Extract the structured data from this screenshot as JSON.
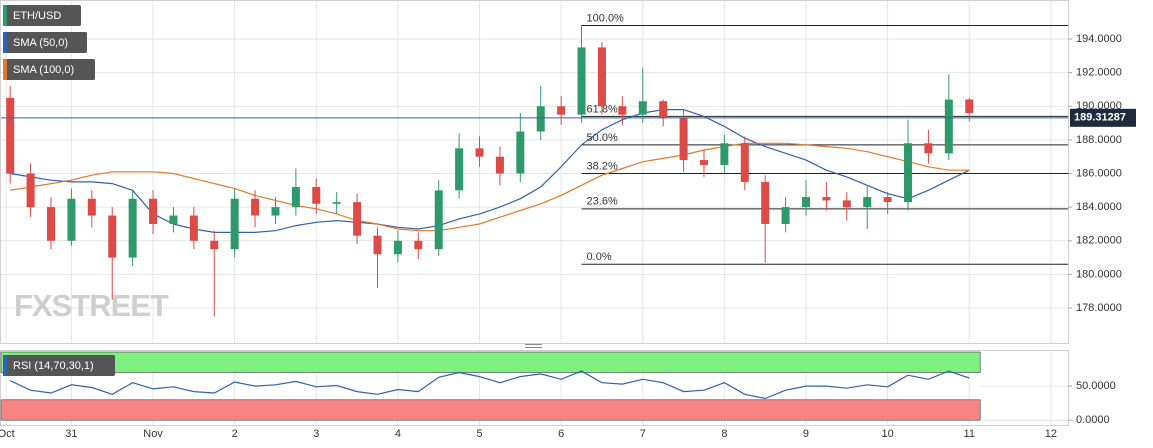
{
  "chart_data": [
    {
      "type": "candlestick",
      "name": "ETH/USD",
      "up_color": "#2e9a6b",
      "down_color": "#dd4b47",
      "x": [
        -0.75,
        -0.5,
        -0.25,
        0,
        0.25,
        0.5,
        0.75,
        1,
        1.25,
        1.5,
        1.75,
        2,
        2.25,
        2.5,
        2.75,
        3,
        3.25,
        3.5,
        3.75,
        4,
        4.25,
        4.5,
        4.75,
        5,
        5.25,
        5.5,
        5.75,
        6,
        6.25,
        6.5,
        6.75,
        7,
        7.25,
        7.5,
        7.75,
        8,
        8.25,
        8.5,
        8.75,
        9,
        9.25,
        9.5,
        9.75,
        10,
        10.25,
        10.5,
        10.75,
        11
      ],
      "open": [
        190.5,
        186,
        184,
        182,
        184.5,
        183.5,
        181,
        184.5,
        183,
        183.5,
        182,
        181.5,
        184.5,
        183.5,
        184,
        185.2,
        184.2,
        184.3,
        182.3,
        181.2,
        182,
        181.5,
        185,
        187.5,
        187,
        186,
        188.5,
        190,
        189.5,
        193.5,
        190,
        189.5,
        190.3,
        189.3,
        186.8,
        186.5,
        187.8,
        185.5,
        183,
        184,
        184.6,
        184.4,
        184,
        184.6,
        184.3,
        187.8,
        187.2,
        190.4
      ],
      "high": [
        191.2,
        186.6,
        184.6,
        185.1,
        185,
        184,
        185,
        185,
        184,
        184,
        182.6,
        185.1,
        185,
        184.6,
        186.3,
        185.7,
        184.9,
        184.8,
        182.8,
        182.6,
        182.5,
        185.6,
        188.4,
        188.2,
        187.6,
        189.6,
        191.2,
        190.6,
        194.8,
        193.8,
        190.6,
        192.3,
        190.4,
        189.8,
        187.4,
        188.3,
        188.2,
        185.9,
        184.6,
        185.6,
        185.5,
        184.9,
        185.3,
        184.9,
        189.2,
        188.6,
        191.9,
        190.5
      ],
      "low": [
        185.4,
        183.4,
        181.5,
        181.7,
        182.8,
        178.5,
        180.5,
        182.4,
        182.5,
        181.5,
        177.5,
        181,
        182.8,
        183,
        183.5,
        183.6,
        183.6,
        181.8,
        179.2,
        180.7,
        180.9,
        181.1,
        184.5,
        186.4,
        185.3,
        185.5,
        188,
        188.9,
        189,
        189.5,
        188.9,
        189,
        188.8,
        186.1,
        185.8,
        186,
        185,
        180.7,
        182.5,
        183.5,
        183.8,
        183.2,
        182.7,
        183.6,
        183.8,
        186.6,
        186.8,
        189.1
      ],
      "close": [
        186,
        184,
        182,
        184.5,
        183.5,
        181,
        184.5,
        183,
        183.5,
        182,
        181.5,
        184.5,
        183.5,
        184,
        185.2,
        184.2,
        184.3,
        182.3,
        181.2,
        182,
        181.5,
        185,
        187.5,
        187,
        186,
        188.5,
        190,
        189.5,
        193.5,
        190,
        189.5,
        190.3,
        189.3,
        186.8,
        186.5,
        187.8,
        185.5,
        183,
        184,
        184.6,
        184.4,
        184,
        184.6,
        184.3,
        187.8,
        187.2,
        190.4,
        189.6
      ],
      "overlays": [
        {
          "name": "SMA (50,0)",
          "color": "#2f62b0",
          "values": [
            186,
            185.8,
            185.6,
            185.5,
            185.5,
            185.4,
            185,
            183.6,
            183,
            182.7,
            182.5,
            182.5,
            182.5,
            182.6,
            182.9,
            183.1,
            183.2,
            183.1,
            183,
            182.8,
            182.7,
            182.9,
            183.3,
            183.6,
            184,
            184.5,
            185.2,
            186.4,
            187.7,
            188.6,
            189.2,
            189.6,
            189.8,
            189.8,
            189.4,
            188.8,
            188.1,
            187.6,
            187.2,
            186.8,
            186.2,
            185.8,
            185.3,
            184.8,
            184.5,
            185,
            185.6,
            186.2
          ]
        },
        {
          "name": "SMA (100,0)",
          "color": "#e07a2d",
          "values": [
            185,
            185.2,
            185.4,
            185.6,
            185.9,
            186.1,
            186.1,
            186.1,
            186,
            185.7,
            185.4,
            185.1,
            184.7,
            184.4,
            184.1,
            183.9,
            183.6,
            183.2,
            183,
            182.7,
            182.6,
            182.6,
            182.8,
            183,
            183.4,
            183.8,
            184.2,
            184.7,
            185.3,
            185.9,
            186.3,
            186.7,
            186.9,
            187.1,
            187.4,
            187.6,
            187.8,
            187.8,
            187.8,
            187.7,
            187.6,
            187.5,
            187.3,
            187,
            186.7,
            186.4,
            186.2,
            186.2
          ]
        }
      ],
      "fib_levels": [
        {
          "label": "100.0%",
          "value": 194.8
        },
        {
          "label": "61.8%",
          "value": 189.4
        },
        {
          "label": "50.0%",
          "value": 187.7
        },
        {
          "label": "38.2%",
          "value": 186.0
        },
        {
          "label": "23.6%",
          "value": 183.9
        },
        {
          "label": "0.0%",
          "value": 180.6
        }
      ],
      "last_price": {
        "value": 189.31287,
        "label": "189.31287"
      },
      "price_line_color": "#2f62b0",
      "watermark": "FXSTREET",
      "xlim": [
        -0.875,
        12.21
      ],
      "xticks": [
        {
          "value": -0.8,
          "label": "Oct"
        },
        {
          "value": 0,
          "label": "31"
        },
        {
          "value": 1,
          "label": "Nov"
        },
        2,
        3,
        4,
        5,
        6,
        7,
        8,
        9,
        10,
        11,
        12
      ],
      "ylim": [
        175.92,
        196.32
      ],
      "yticks": [
        {
          "value": 178,
          "label": "178.0000"
        },
        {
          "value": 180,
          "label": "180.0000"
        },
        {
          "value": 182,
          "label": "182.0000"
        },
        {
          "value": 184,
          "label": "184.0000"
        },
        {
          "value": 186,
          "label": "186.0000"
        },
        {
          "value": 188,
          "label": "188.0000"
        },
        {
          "value": 190,
          "label": "190.0000"
        },
        {
          "value": 192,
          "label": "192.0000"
        },
        {
          "value": 194,
          "label": "194.0000"
        }
      ],
      "grid": true
    },
    {
      "type": "line",
      "name": "RSI (14,70,30,1)",
      "color": "#2f62b0",
      "bands": [
        {
          "from": 70,
          "to": 100,
          "color": "#7ef07e"
        },
        {
          "from": 0,
          "to": 30,
          "color": "#f78383"
        }
      ],
      "values": [
        58,
        44,
        40,
        52,
        48,
        38,
        55,
        46,
        49,
        42,
        40,
        56,
        50,
        52,
        57,
        49,
        51,
        42,
        38,
        45,
        42,
        63,
        70,
        64,
        55,
        64,
        68,
        60,
        72,
        55,
        53,
        60,
        55,
        42,
        44,
        55,
        38,
        32,
        44,
        50,
        50,
        47,
        52,
        49,
        66,
        60,
        72,
        62
      ],
      "ylim": [
        -7,
        103
      ],
      "yticks": [
        {
          "value": 0,
          "label": "0.0000"
        },
        {
          "value": 50,
          "label": "50.0000"
        }
      ],
      "grid": true
    }
  ]
}
